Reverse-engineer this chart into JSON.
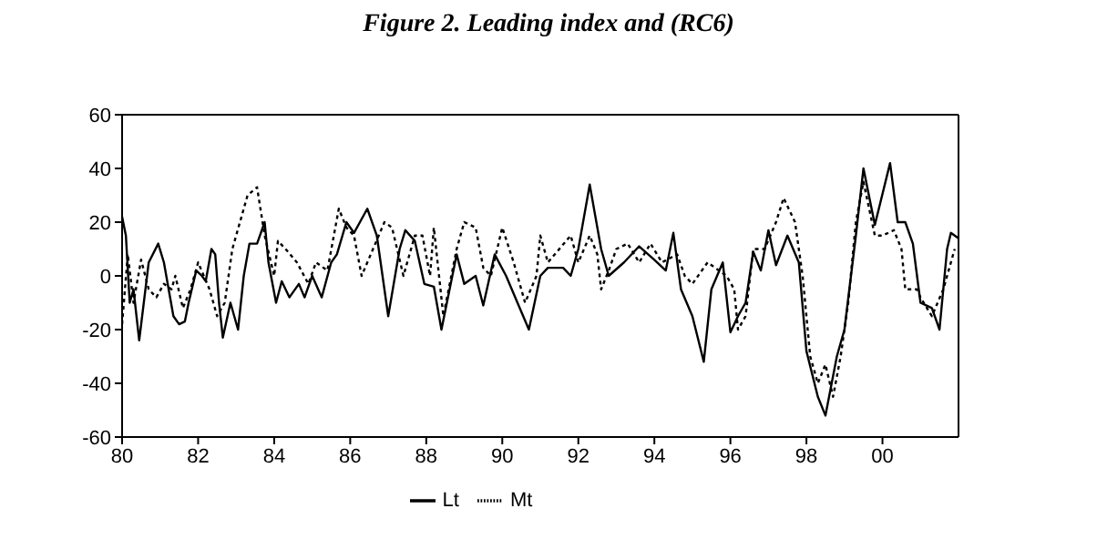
{
  "chart_data": {
    "type": "line",
    "title": "Figure 2. Leading index and (RC6)",
    "xlim": [
      1980,
      2002
    ],
    "xticks": [
      {
        "value": 1980,
        "label": "80"
      },
      {
        "value": 1982,
        "label": "82"
      },
      {
        "value": 1984,
        "label": "84"
      },
      {
        "value": 1986,
        "label": "86"
      },
      {
        "value": 1988,
        "label": "88"
      },
      {
        "value": 1990,
        "label": "90"
      },
      {
        "value": 1992,
        "label": "92"
      },
      {
        "value": 1994,
        "label": "94"
      },
      {
        "value": 1996,
        "label": "96"
      },
      {
        "value": 1998,
        "label": "98"
      },
      {
        "value": 2000,
        "label": "00"
      }
    ],
    "ylim": [
      -60,
      60
    ],
    "yticks": [
      -60,
      -40,
      -20,
      0,
      20,
      40,
      60
    ],
    "legend": "bottom",
    "marker": "none",
    "series": [
      {
        "name": "Lt",
        "color": "#000000",
        "line_style": "solid",
        "x": [
          1980.0,
          1980.1,
          1980.2,
          1980.3,
          1980.45,
          1980.7,
          1980.95,
          1981.1,
          1981.35,
          1981.5,
          1981.65,
          1981.75,
          1981.95,
          1982.1,
          1982.2,
          1982.35,
          1982.45,
          1982.55,
          1982.65,
          1982.85,
          1983.05,
          1983.2,
          1983.35,
          1983.55,
          1983.75,
          1983.85,
          1984.05,
          1984.2,
          1984.4,
          1984.65,
          1984.8,
          1985.0,
          1985.25,
          1985.5,
          1985.65,
          1985.9,
          1986.1,
          1986.45,
          1986.7,
          1987.0,
          1987.3,
          1987.45,
          1987.7,
          1987.95,
          1988.2,
          1988.4,
          1988.8,
          1989.0,
          1989.3,
          1989.5,
          1989.8,
          1990.1,
          1990.4,
          1990.7,
          1991.0,
          1991.2,
          1991.6,
          1991.8,
          1992.0,
          1992.3,
          1992.6,
          1992.8,
          1993.2,
          1993.6,
          1994.0,
          1994.3,
          1994.5,
          1994.7,
          1995.0,
          1995.3,
          1995.5,
          1995.8,
          1996.0,
          1996.2,
          1996.4,
          1996.6,
          1996.8,
          1997.0,
          1997.2,
          1997.5,
          1997.8,
          1998.0,
          1998.3,
          1998.5,
          1998.8,
          1999.0,
          1999.3,
          1999.5,
          1999.8,
          2000.2,
          2000.4,
          2000.6,
          2000.8,
          2001.0,
          2001.3,
          2001.5,
          2001.7,
          2001.8,
          2002.0
        ],
        "values": [
          22,
          15,
          -10,
          -5,
          -24,
          5,
          12,
          5,
          -15,
          -18,
          -17,
          -10,
          2,
          0,
          -2,
          10,
          8,
          -10,
          -23,
          -10,
          -20,
          0,
          12,
          12,
          20,
          5,
          -10,
          -2,
          -8,
          -3,
          -8,
          0,
          -8,
          5,
          8,
          20,
          16,
          25,
          15,
          -15,
          10,
          17,
          13,
          -3,
          -4,
          -20,
          8,
          -3,
          0,
          -11,
          8,
          0,
          -10,
          -20,
          0,
          3,
          3,
          0,
          10,
          34,
          10,
          0,
          5,
          11,
          6,
          2,
          16,
          -5,
          -15,
          -32,
          -5,
          5,
          -21,
          -15,
          -10,
          9,
          2,
          17,
          4,
          15,
          5,
          -28,
          -45,
          -52,
          -30,
          -20,
          15,
          40,
          19,
          42,
          20,
          20,
          12,
          -10,
          -12,
          -20,
          10,
          16,
          14
        ]
      },
      {
        "name": "Mt",
        "color": "#000000",
        "line_style": "dotted",
        "x": [
          1980.0,
          1980.15,
          1980.3,
          1980.5,
          1980.7,
          1980.9,
          1981.1,
          1981.3,
          1981.4,
          1981.6,
          1981.8,
          1982.0,
          1982.3,
          1982.5,
          1982.7,
          1982.9,
          1983.1,
          1983.3,
          1983.55,
          1983.75,
          1984.0,
          1984.1,
          1984.3,
          1984.6,
          1984.9,
          1985.1,
          1985.4,
          1985.7,
          1985.9,
          1986.1,
          1986.3,
          1986.6,
          1986.9,
          1987.1,
          1987.4,
          1987.7,
          1987.9,
          1988.1,
          1988.2,
          1988.45,
          1988.8,
          1989.0,
          1989.3,
          1989.5,
          1989.7,
          1990.0,
          1990.3,
          1990.6,
          1990.9,
          1991.0,
          1991.2,
          1991.5,
          1991.8,
          1992.0,
          1992.3,
          1992.5,
          1992.6,
          1992.8,
          1993.0,
          1993.3,
          1993.6,
          1993.9,
          1994.2,
          1994.6,
          1994.8,
          1995.0,
          1995.4,
          1995.6,
          1995.9,
          1996.1,
          1996.2,
          1996.4,
          1996.6,
          1996.9,
          1997.2,
          1997.4,
          1997.7,
          1997.9,
          1998.1,
          1998.3,
          1998.5,
          1998.7,
          1998.9,
          1999.1,
          1999.3,
          1999.5,
          1999.8,
          2000.0,
          2000.3,
          2000.5,
          2000.6,
          2000.9,
          2001.0,
          2001.3,
          2001.6,
          2001.9
        ],
        "values": [
          -18,
          8,
          -10,
          6,
          -5,
          -8,
          -3,
          -5,
          0,
          -12,
          -5,
          5,
          -5,
          -15,
          -10,
          10,
          20,
          30,
          33,
          15,
          0,
          13,
          10,
          5,
          -3,
          5,
          2,
          25,
          18,
          15,
          0,
          10,
          20,
          18,
          0,
          15,
          15,
          0,
          18,
          -15,
          10,
          20,
          18,
          3,
          0,
          18,
          5,
          -10,
          0,
          15,
          5,
          10,
          15,
          5,
          15,
          8,
          -5,
          2,
          10,
          12,
          5,
          12,
          5,
          8,
          0,
          -3,
          5,
          3,
          0,
          -5,
          -20,
          -15,
          10,
          10,
          20,
          29,
          20,
          0,
          -30,
          -40,
          -33,
          -45,
          -30,
          -10,
          20,
          35,
          15,
          15,
          17,
          10,
          -5,
          -5,
          -8,
          -15,
          -5,
          10
        ]
      }
    ]
  }
}
